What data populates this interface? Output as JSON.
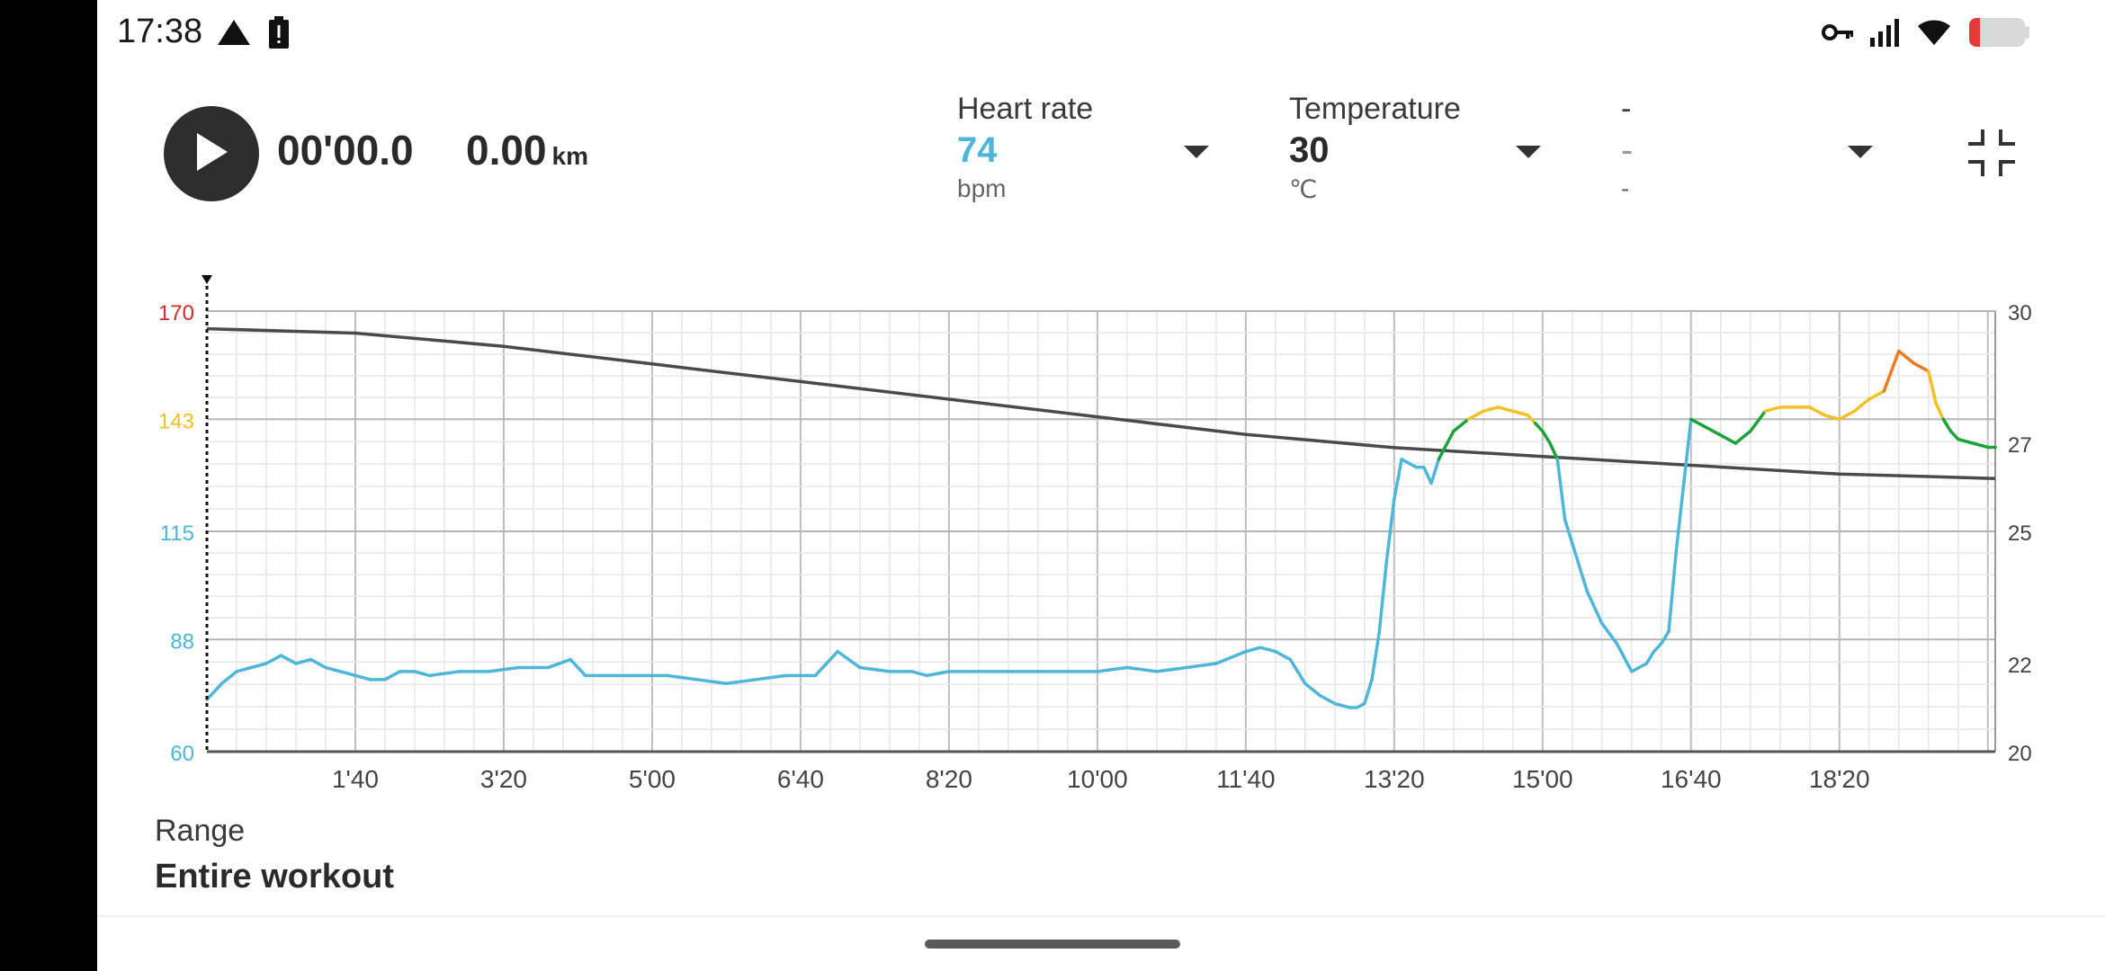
{
  "status_bar": {
    "time": "17:38",
    "icons_left": [
      "navigation-icon",
      "battery-alert-icon"
    ],
    "icons_right": [
      "vpn-key-icon",
      "cellular-signal-icon",
      "wifi-icon",
      "battery-low-icon"
    ]
  },
  "playback": {
    "duration": "00'00.0",
    "distance": "0.00",
    "distance_unit": "km"
  },
  "metrics": [
    {
      "label": "Heart rate",
      "value": "74",
      "unit": "bpm",
      "color": "#4db6d9"
    },
    {
      "label": "Temperature",
      "value": "30",
      "unit": "℃",
      "color": "#2a2a2a"
    },
    {
      "label": "-",
      "value": "-",
      "unit": "-",
      "color": "#9a9a9a"
    }
  ],
  "range": {
    "label": "Range",
    "value": "Entire workout"
  },
  "colors": {
    "hr_zone_low": "#4db6d9",
    "hr_zone_mid": "#1aa33a",
    "hr_zone_high": "#f2c029",
    "hr_zone_higher": "#f07a1e",
    "hr_zone_max": "#d42a2a",
    "temperature_line": "#4a4a4a"
  },
  "chart_data": {
    "type": "line",
    "x_tick_labels": [
      "1'40",
      "3'20",
      "5'00",
      "6'40",
      "8'20",
      "10'00",
      "11'40",
      "13'20",
      "15'00",
      "16'40",
      "18'20"
    ],
    "x_ticks_seconds": [
      100,
      200,
      300,
      400,
      500,
      600,
      700,
      800,
      900,
      1000,
      1100
    ],
    "xlim_seconds": [
      0,
      1205
    ],
    "left_axis": {
      "ticks": [
        60,
        88,
        115,
        143,
        170
      ],
      "tick_colors": [
        "#4db6d9",
        "#4db6d9",
        "#4db6d9",
        "#f2c029",
        "#d42a2a"
      ],
      "ylim": [
        60,
        170
      ]
    },
    "right_axis": {
      "ticks": [
        20,
        22,
        25,
        27,
        30
      ],
      "ylim": [
        20,
        30
      ]
    },
    "grid": true,
    "series": [
      {
        "axis": "left",
        "x_seconds": [
          0,
          10,
          20,
          30,
          40,
          50,
          60,
          70,
          80,
          90,
          100,
          110,
          120,
          130,
          140,
          150,
          170,
          190,
          210,
          230,
          245,
          255,
          270,
          290,
          310,
          330,
          350,
          370,
          390,
          410,
          425,
          440,
          460,
          475,
          485,
          500,
          520,
          540,
          560,
          580,
          600,
          620,
          640,
          660,
          680,
          700,
          710,
          720,
          730,
          740,
          750,
          760,
          770,
          775,
          780,
          785,
          790,
          795,
          800,
          805,
          810,
          815,
          820,
          825,
          830,
          840,
          850,
          860,
          870,
          880,
          890,
          895,
          900,
          905,
          910,
          915,
          920,
          930,
          940,
          950,
          960,
          970,
          975,
          980,
          985,
          990,
          1000,
          1010,
          1020,
          1030,
          1040,
          1050,
          1060,
          1070,
          1080,
          1090,
          1100,
          1110,
          1120,
          1130,
          1140,
          1150,
          1160,
          1165,
          1170,
          1175,
          1180,
          1190,
          1200,
          1205
        ],
        "y": [
          73,
          77,
          80,
          81,
          82,
          84,
          82,
          83,
          81,
          80,
          79,
          78,
          78,
          80,
          80,
          79,
          80,
          80,
          81,
          81,
          83,
          79,
          79,
          79,
          79,
          78,
          77,
          78,
          79,
          79,
          85,
          81,
          80,
          80,
          79,
          80,
          80,
          80,
          80,
          80,
          80,
          81,
          80,
          81,
          82,
          85,
          86,
          85,
          83,
          77,
          74,
          72,
          71,
          71,
          72,
          78,
          90,
          108,
          123,
          133,
          132,
          131,
          131,
          127,
          133,
          140,
          143,
          145,
          146,
          145,
          144,
          142,
          140,
          137,
          133,
          118,
          112,
          100,
          92,
          87,
          80,
          82,
          85,
          87,
          90,
          110,
          143,
          141,
          139,
          137,
          140,
          145,
          146,
          146,
          146,
          144,
          143,
          145,
          148,
          150,
          160,
          157,
          155,
          147,
          143,
          140,
          138,
          137,
          136,
          136
        ],
        "zone_thresholds": [
          133,
          143,
          155,
          160
        ]
      },
      {
        "axis": "right",
        "x_seconds": [
          0,
          100,
          200,
          300,
          400,
          500,
          600,
          700,
          800,
          900,
          1000,
          1100,
          1205
        ],
        "y": [
          29.6,
          29.5,
          29.2,
          28.8,
          28.4,
          28.0,
          27.6,
          27.2,
          26.9,
          26.7,
          26.5,
          26.3,
          26.2
        ]
      }
    ]
  }
}
